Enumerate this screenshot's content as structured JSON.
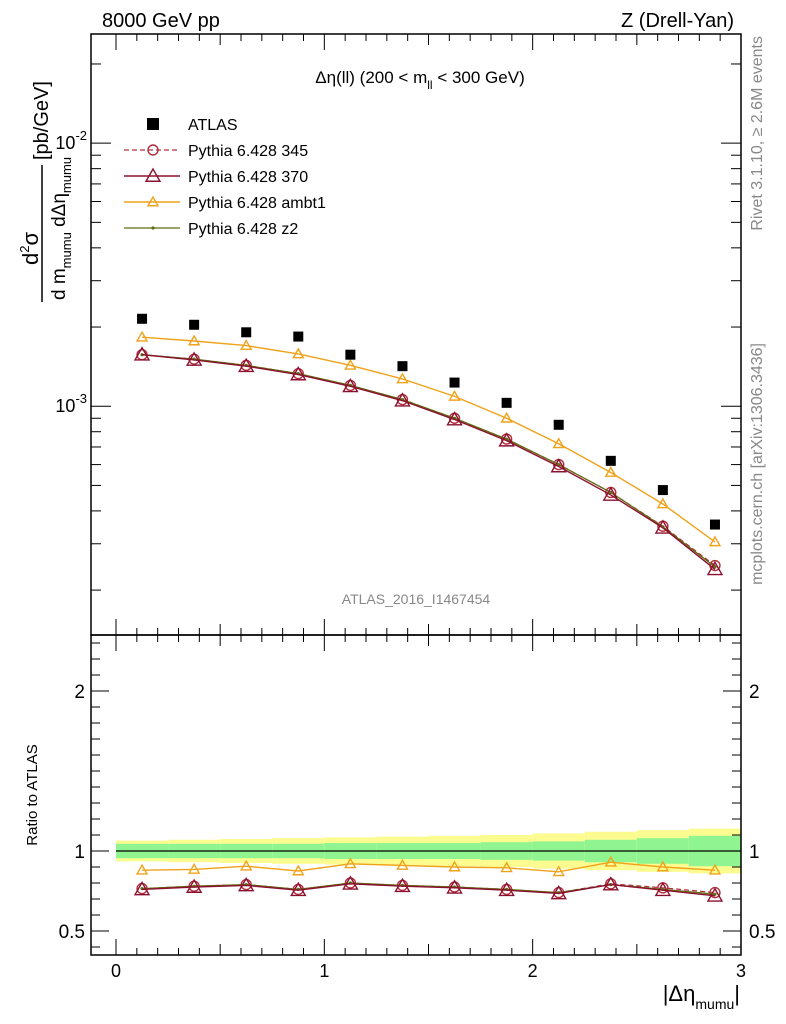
{
  "header": {
    "left": "8000 GeV pp",
    "right": "Z (Drell-Yan)"
  },
  "side": {
    "rivet": "Rivet 3.1.10, ≥ 2.6M events",
    "mcplots": "mcplots.cern.ch [arXiv:1306.3436]"
  },
  "analysis_id": "ATLAS_2016_I1467454",
  "colors": {
    "atlas": "#000000",
    "p345": "#b22d3b",
    "p370": "#8b1030",
    "ambt1": "#f0a21a",
    "z2": "#5f6d0e",
    "band_inner": "#90f590",
    "band_outer": "#fbfb8f"
  },
  "chart_data": [
    {
      "type": "scatter",
      "title": "Δη(ll) (200 < m_ll < 300 GeV)",
      "xlabel": "|Δη_mumu|",
      "ylabel": "d²σ / d m_mumu dΔη_mumu [pb/GeV]",
      "yscale": "log",
      "xlim": [
        -0.12,
        3.0
      ],
      "ylim": [
        0.000135,
        0.026
      ],
      "ytick_labels": [
        "10^-3",
        "10^-2"
      ],
      "legend_position": "top-left",
      "x": [
        0.125,
        0.375,
        0.625,
        0.875,
        1.125,
        1.375,
        1.625,
        1.875,
        2.125,
        2.375,
        2.625,
        2.875
      ],
      "series": [
        {
          "name": "ATLAS",
          "key": "atlas",
          "values": [
            0.00215,
            0.00204,
            0.00191,
            0.00184,
            0.00157,
            0.00142,
            0.00123,
            0.00103,
            0.00085,
            0.00062,
            0.00048,
            0.000355
          ]
        },
        {
          "name": "Pythia 6.428 345",
          "key": "p345",
          "values": [
            0.00157,
            0.00151,
            0.00143,
            0.00133,
            0.0012,
            0.00106,
            0.0009,
            0.00075,
            0.0006,
            0.00047,
            0.00035,
            0.000248
          ]
        },
        {
          "name": "Pythia 6.428 370",
          "key": "p370",
          "values": [
            0.00157,
            0.0015,
            0.00142,
            0.00132,
            0.00119,
            0.00105,
            0.00089,
            0.00074,
            0.00059,
            0.00046,
            0.000345,
            0.00024
          ]
        },
        {
          "name": "Pythia 6.428 ambt1",
          "key": "ambt1",
          "values": [
            0.00183,
            0.00177,
            0.0017,
            0.00158,
            0.00143,
            0.00127,
            0.00109,
            0.0009,
            0.00072,
            0.00056,
            0.000425,
            0.000305
          ]
        },
        {
          "name": "Pythia 6.428 z2",
          "key": "z2",
          "values": [
            0.00157,
            0.00151,
            0.00143,
            0.00133,
            0.0012,
            0.00106,
            0.0009,
            0.00075,
            0.0006,
            0.00047,
            0.000348,
            0.000245
          ]
        }
      ]
    },
    {
      "type": "line",
      "ylabel": "Ratio to ATLAS",
      "xlabel": "|Δη_mumu|",
      "xlim": [
        -0.12,
        3.0
      ],
      "ylim": [
        0.35,
        2.35
      ],
      "xticks": [
        0,
        1,
        2,
        3
      ],
      "yticks": [
        0.5,
        1,
        2
      ],
      "x": [
        0.125,
        0.375,
        0.625,
        0.875,
        1.125,
        1.375,
        1.625,
        1.875,
        2.125,
        2.375,
        2.625,
        2.875
      ],
      "band_inner": [
        0.045,
        0.045,
        0.045,
        0.045,
        0.05,
        0.05,
        0.05,
        0.055,
        0.06,
        0.07,
        0.08,
        0.095
      ],
      "band_outer": [
        0.065,
        0.07,
        0.075,
        0.08,
        0.085,
        0.09,
        0.095,
        0.1,
        0.11,
        0.12,
        0.13,
        0.14
      ],
      "series": [
        {
          "name": "Pythia 6.428 345",
          "key": "p345",
          "values": [
            0.765,
            0.78,
            0.79,
            0.76,
            0.8,
            0.785,
            0.775,
            0.76,
            0.74,
            0.795,
            0.77,
            0.74
          ]
        },
        {
          "name": "Pythia 6.428 370",
          "key": "p370",
          "values": [
            0.76,
            0.775,
            0.785,
            0.755,
            0.795,
            0.78,
            0.77,
            0.755,
            0.735,
            0.79,
            0.755,
            0.72
          ]
        },
        {
          "name": "Pythia 6.428 ambt1",
          "key": "ambt1",
          "values": [
            0.88,
            0.885,
            0.905,
            0.875,
            0.92,
            0.91,
            0.9,
            0.895,
            0.87,
            0.93,
            0.9,
            0.88
          ]
        },
        {
          "name": "Pythia 6.428 z2",
          "key": "z2",
          "values": [
            0.765,
            0.78,
            0.79,
            0.76,
            0.8,
            0.785,
            0.775,
            0.76,
            0.74,
            0.79,
            0.76,
            0.73
          ]
        }
      ]
    }
  ]
}
